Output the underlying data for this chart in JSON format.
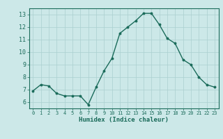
{
  "x": [
    0,
    1,
    2,
    3,
    4,
    5,
    6,
    7,
    8,
    9,
    10,
    11,
    12,
    13,
    14,
    15,
    16,
    17,
    18,
    19,
    20,
    21,
    22,
    23
  ],
  "y": [
    6.9,
    7.4,
    7.3,
    6.7,
    6.5,
    6.5,
    6.5,
    5.8,
    7.2,
    8.5,
    9.5,
    11.5,
    12.0,
    12.5,
    13.1,
    13.1,
    12.2,
    11.1,
    10.7,
    9.4,
    9.0,
    8.0,
    7.4,
    7.2
  ],
  "xlabel": "Humidex (Indice chaleur)",
  "ylim": [
    5.5,
    13.5
  ],
  "xlim": [
    -0.5,
    23.5
  ],
  "yticks": [
    6,
    7,
    8,
    9,
    10,
    11,
    12,
    13
  ],
  "xticks": [
    0,
    1,
    2,
    3,
    4,
    5,
    6,
    7,
    8,
    9,
    10,
    11,
    12,
    13,
    14,
    15,
    16,
    17,
    18,
    19,
    20,
    21,
    22,
    23
  ],
  "line_color": "#1a6b5a",
  "marker_color": "#1a6b5a",
  "bg_color": "#cce8e8",
  "grid_color": "#aacfcf",
  "axis_color": "#1a6b5a",
  "tick_color": "#1a6b5a",
  "label_color": "#1a6b5a"
}
